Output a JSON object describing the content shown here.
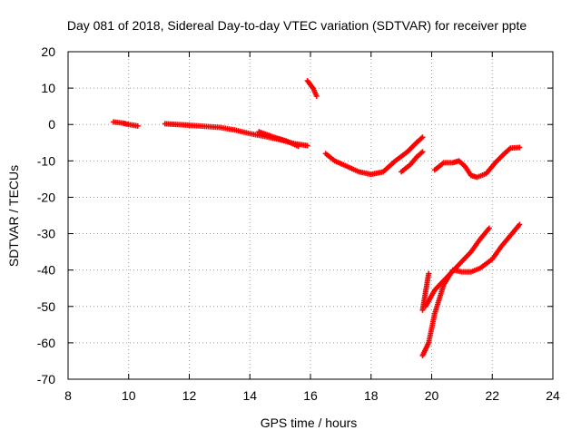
{
  "chart_data": {
    "type": "scatter",
    "title": "Day 081 of 2018, Sidereal Day-to-day VTEC variation (SDTVAR) for receiver ppte",
    "xlabel": "GPS time / hours",
    "ylabel": "SDTVAR / TECUs",
    "xlim": [
      8,
      24
    ],
    "ylim": [
      -70,
      20
    ],
    "xticks": [
      8,
      10,
      12,
      14,
      16,
      18,
      20,
      22,
      24
    ],
    "yticks": [
      20,
      10,
      0,
      -10,
      -20,
      -30,
      -40,
      -50,
      -60,
      -70
    ],
    "grid": true,
    "marker_color": "#ff0000",
    "series": [
      {
        "segments": [
          [
            [
              9.5,
              0.7
            ],
            [
              9.8,
              0.4
            ],
            [
              10.0,
              0.0
            ],
            [
              10.3,
              -0.4
            ]
          ],
          [
            [
              11.2,
              0.2
            ],
            [
              11.6,
              0.0
            ],
            [
              12.0,
              -0.2
            ],
            [
              12.5,
              -0.5
            ],
            [
              13.0,
              -0.8
            ],
            [
              13.5,
              -1.5
            ],
            [
              14.0,
              -2.5
            ],
            [
              14.5,
              -3.3
            ],
            [
              15.0,
              -4.2
            ],
            [
              15.5,
              -5.3
            ],
            [
              15.9,
              -5.8
            ]
          ],
          [
            [
              14.3,
              -2.0
            ],
            [
              14.8,
              -3.5
            ],
            [
              15.2,
              -4.5
            ],
            [
              15.6,
              -6.0
            ]
          ],
          [
            [
              15.9,
              12.0
            ],
            [
              16.1,
              9.8
            ],
            [
              16.2,
              7.8
            ]
          ],
          [
            [
              16.5,
              -8.0
            ],
            [
              16.8,
              -10.0
            ],
            [
              17.2,
              -11.5
            ],
            [
              17.6,
              -13.0
            ],
            [
              18.0,
              -13.7
            ],
            [
              18.4,
              -13.0
            ],
            [
              18.8,
              -10.0
            ],
            [
              19.2,
              -7.5
            ],
            [
              19.5,
              -5.0
            ],
            [
              19.7,
              -3.5
            ]
          ],
          [
            [
              19.0,
              -13.0
            ],
            [
              19.3,
              -11.0
            ],
            [
              19.5,
              -9.0
            ],
            [
              19.7,
              -7.5
            ]
          ],
          [
            [
              20.1,
              -12.5
            ],
            [
              20.4,
              -10.5
            ],
            [
              20.7,
              -10.5
            ],
            [
              20.9,
              -10.0
            ],
            [
              21.1,
              -11.5
            ],
            [
              21.3,
              -14.0
            ],
            [
              21.5,
              -14.5
            ],
            [
              21.8,
              -13.5
            ],
            [
              22.1,
              -10.5
            ],
            [
              22.4,
              -8.0
            ],
            [
              22.6,
              -6.5
            ],
            [
              22.9,
              -6.3
            ]
          ],
          [
            [
              19.7,
              -51.0
            ],
            [
              19.8,
              -46.0
            ],
            [
              19.9,
              -41.0
            ]
          ],
          [
            [
              19.7,
              -63.5
            ],
            [
              19.9,
              -60.0
            ],
            [
              20.1,
              -52.0
            ],
            [
              20.4,
              -44.0
            ],
            [
              20.7,
              -40.0
            ],
            [
              21.0,
              -40.5
            ],
            [
              21.3,
              -40.5
            ],
            [
              21.6,
              -39.5
            ],
            [
              22.0,
              -37.0
            ],
            [
              22.3,
              -33.5
            ],
            [
              22.6,
              -30.5
            ],
            [
              22.9,
              -27.5
            ]
          ],
          [
            [
              19.8,
              -50.0
            ],
            [
              20.1,
              -45.5
            ],
            [
              20.5,
              -42.0
            ],
            [
              20.9,
              -38.5
            ],
            [
              21.3,
              -35.0
            ],
            [
              21.6,
              -31.5
            ],
            [
              21.9,
              -28.5
            ]
          ]
        ]
      }
    ]
  }
}
